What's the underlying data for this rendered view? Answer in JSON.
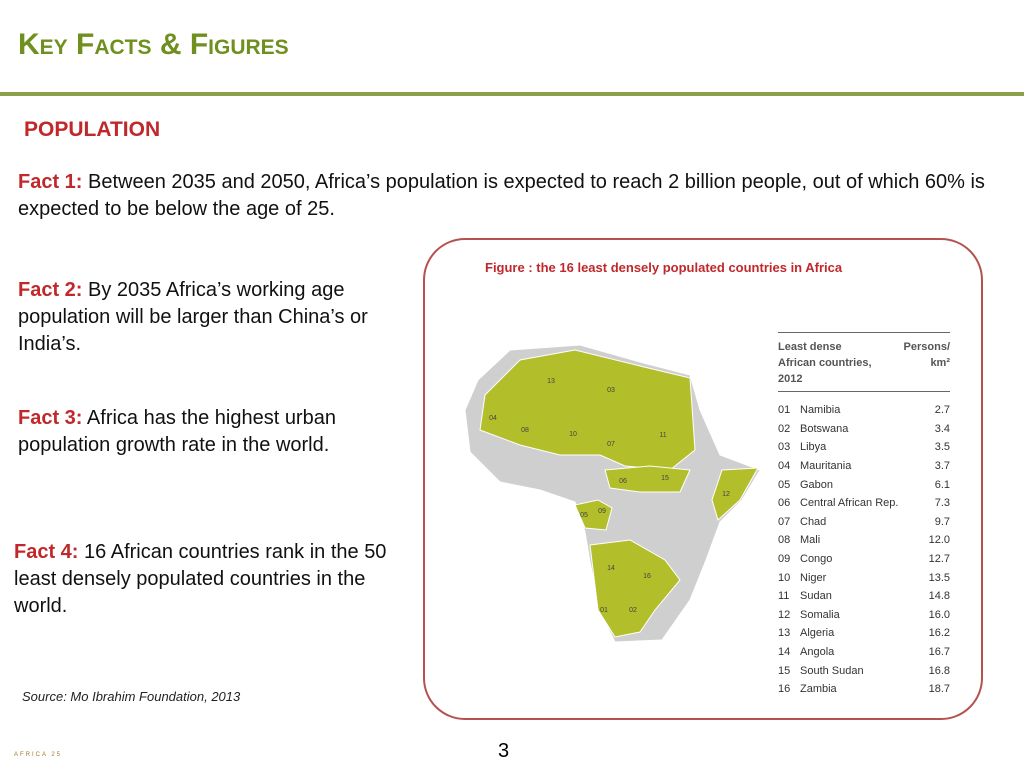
{
  "header": {
    "title": "Key Facts & Figures"
  },
  "section": "POPULATION",
  "facts": [
    {
      "label": "Fact 1:",
      "text": "Between 2035 and 2050, Africa’s population is expected to reach 2 billion people, out of which 60% is expected to be below the age of 25."
    },
    {
      "label": "Fact 2:",
      "text": "By 2035 Africa’s working age population will be larger than China’s or India’s."
    },
    {
      "label": "Fact 3:",
      "text": "Africa has the highest urban population growth rate in the world."
    },
    {
      "label": "Fact 4:",
      "text": "16 African countries rank in the 50 least densely populated countries in the world."
    }
  ],
  "figure": {
    "caption": "Figure : the 16 least densely populated countries in Africa",
    "table": {
      "columns": [
        "Least dense African countries, 2012",
        "Persons/ km²"
      ],
      "rows": [
        [
          "01",
          "Namibia",
          "2.7"
        ],
        [
          "02",
          "Botswana",
          "3.4"
        ],
        [
          "03",
          "Libya",
          "3.5"
        ],
        [
          "04",
          "Mauritania",
          "3.7"
        ],
        [
          "05",
          "Gabon",
          "6.1"
        ],
        [
          "06",
          "Central African Rep.",
          "7.3"
        ],
        [
          "07",
          "Chad",
          "9.7"
        ],
        [
          "08",
          "Mali",
          "12.0"
        ],
        [
          "09",
          "Congo",
          "12.7"
        ],
        [
          "10",
          "Niger",
          "13.5"
        ],
        [
          "11",
          "Sudan",
          "14.8"
        ],
        [
          "12",
          "Somalia",
          "16.0"
        ],
        [
          "13",
          "Algeria",
          "16.2"
        ],
        [
          "14",
          "Angola",
          "16.7"
        ],
        [
          "15",
          "South Sudan",
          "16.8"
        ],
        [
          "16",
          "Zambia",
          "18.7"
        ]
      ]
    },
    "map_labels": [
      "13",
      "03",
      "04",
      "08",
      "10",
      "07",
      "11",
      "06",
      "15",
      "12",
      "05",
      "09",
      "14",
      "16",
      "01",
      "02"
    ]
  },
  "source": "Source: Mo Ibrahim Foundation, 2013",
  "footer": {
    "logo": "AFRICA 25",
    "page": "3"
  }
}
